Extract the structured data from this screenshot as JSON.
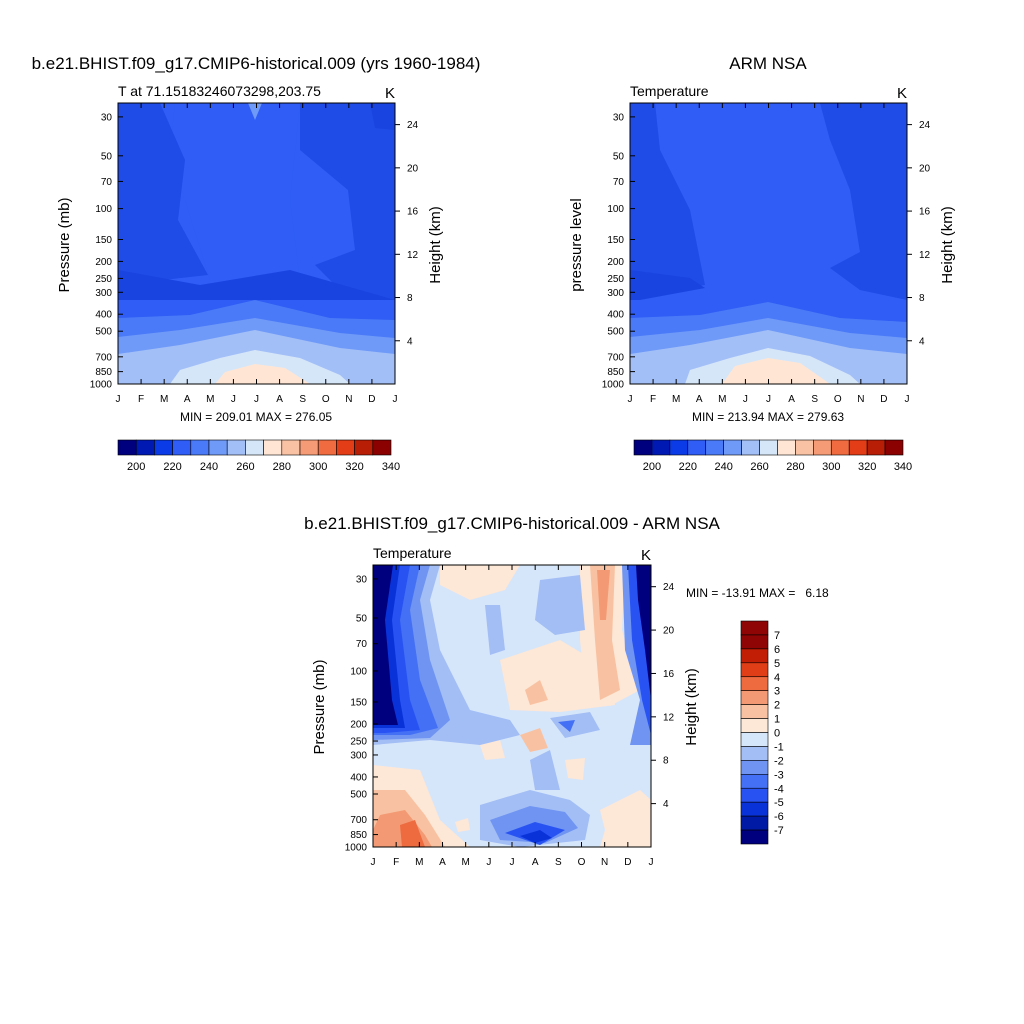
{
  "chart_data": [
    {
      "type": "heatmap",
      "title": "b.e21.BHIST.f09_g17.CMIP6-historical.009 (yrs 1960-1984)",
      "subtitle_left": "T at 71.15183246073298,203.75",
      "subtitle_right": "K",
      "ylabel": "Pressure (mb)",
      "ylabel_right": "Height (km)",
      "stats": "MIN = 209.01 MAX = 276.05",
      "x_ticks": [
        "J",
        "F",
        "M",
        "A",
        "M",
        "J",
        "J",
        "A",
        "S",
        "O",
        "N",
        "D",
        "J"
      ],
      "y_ticks": [
        "30",
        "50",
        "70",
        "100",
        "150",
        "200",
        "250",
        "300",
        "400",
        "500",
        "700",
        "850",
        "1000"
      ],
      "y_ticks_right": [
        "24",
        "20",
        "16",
        "12",
        "8",
        "4"
      ],
      "colorbar_labels": [
        "200",
        "220",
        "240",
        "260",
        "280",
        "300",
        "320",
        "340"
      ],
      "levels": [
        200,
        210,
        220,
        230,
        240,
        250,
        260,
        270,
        280,
        290,
        300,
        310,
        320,
        330,
        340
      ]
    },
    {
      "type": "heatmap",
      "title": "ARM NSA",
      "subtitle_left": "Temperature",
      "subtitle_right": "K",
      "ylabel": "pressure level",
      "ylabel_right": "Height (km)",
      "stats": "MIN = 213.94 MAX = 279.63",
      "x_ticks": [
        "J",
        "F",
        "M",
        "A",
        "M",
        "J",
        "J",
        "A",
        "S",
        "O",
        "N",
        "D",
        "J"
      ],
      "y_ticks": [
        "30",
        "50",
        "70",
        "100",
        "150",
        "200",
        "250",
        "300",
        "400",
        "500",
        "700",
        "850",
        "1000"
      ],
      "y_ticks_right": [
        "24",
        "20",
        "16",
        "12",
        "8",
        "4"
      ],
      "colorbar_labels": [
        "200",
        "220",
        "240",
        "260",
        "280",
        "300",
        "320",
        "340"
      ],
      "levels": [
        200,
        210,
        220,
        230,
        240,
        250,
        260,
        270,
        280,
        290,
        300,
        310,
        320,
        330,
        340
      ]
    },
    {
      "type": "heatmap",
      "title": "b.e21.BHIST.f09_g17.CMIP6-historical.009 - ARM NSA",
      "subtitle_left": "Temperature",
      "subtitle_right": "K",
      "ylabel": "Pressure (mb)",
      "ylabel_right": "Height (km)",
      "stats": "MIN = -13.91 MAX =   6.18",
      "x_ticks": [
        "J",
        "F",
        "M",
        "A",
        "M",
        "J",
        "J",
        "A",
        "S",
        "O",
        "N",
        "D",
        "J"
      ],
      "y_ticks": [
        "30",
        "50",
        "70",
        "100",
        "150",
        "200",
        "250",
        "300",
        "400",
        "500",
        "700",
        "850",
        "1000"
      ],
      "y_ticks_right": [
        "24",
        "20",
        "16",
        "12",
        "8",
        "4"
      ],
      "colorbar_labels": [
        "7",
        "6",
        "5",
        "4",
        "3",
        "2",
        "1",
        "0",
        "-1",
        "-2",
        "-3",
        "-4",
        "-5",
        "-6",
        "-7"
      ],
      "levels": [
        -7,
        -6,
        -5,
        -4,
        -3,
        -2,
        -1,
        0,
        1,
        2,
        3,
        4,
        5,
        6,
        7
      ]
    }
  ],
  "colors": {
    "abs_palette": [
      "#00007f",
      "#0019b3",
      "#0a3be6",
      "#2f5df5",
      "#4a7af7",
      "#6f9af8",
      "#a3bff7",
      "#d6e6f9",
      "#ffe6d4",
      "#f9c2a4",
      "#f59c76",
      "#f06b40",
      "#e33d18",
      "#b81d05",
      "#8b0000"
    ],
    "diff_palette": [
      "#00007f",
      "#001aa6",
      "#0a32d9",
      "#2853f2",
      "#4470f5",
      "#6f94f2",
      "#a3bef5",
      "#d6e6fa",
      "#fde7d6",
      "#f8c2a2",
      "#f39a74",
      "#ee6a3f",
      "#e03e16",
      "#c21d05",
      "#8f0505"
    ]
  }
}
